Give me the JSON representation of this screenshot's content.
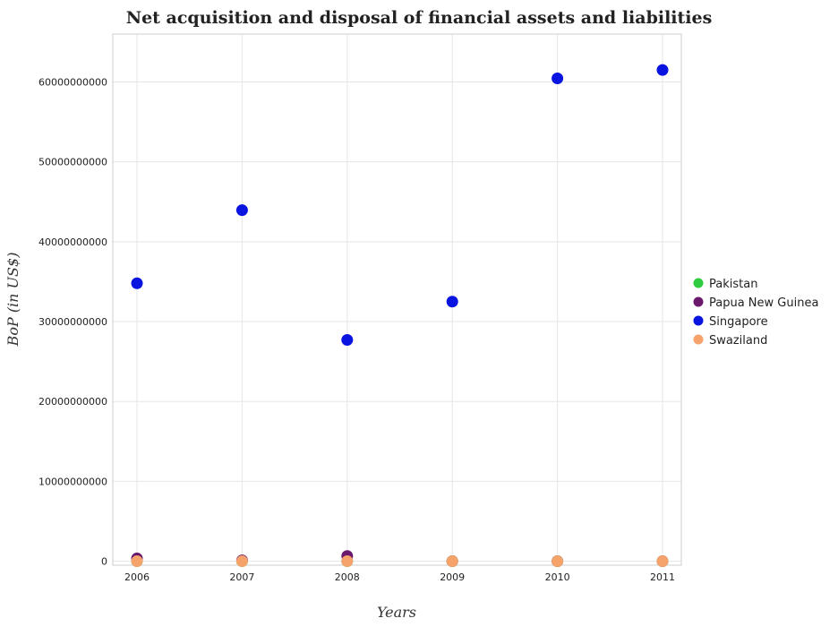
{
  "chart_data": {
    "type": "scatter",
    "title": "Net acquisition and disposal of financial assets and liabilities",
    "xlabel": "Years",
    "ylabel": "BoP (in US$)",
    "categories": [
      "2006",
      "2007",
      "2008",
      "2009",
      "2010",
      "2011"
    ],
    "y_ticks": [
      0,
      10000000000,
      20000000000,
      30000000000,
      40000000000,
      50000000000,
      60000000000
    ],
    "y_tick_labels": [
      "0",
      "10000000000",
      "20000000000",
      "30000000000",
      "40000000000",
      "50000000000",
      "60000000000"
    ],
    "ylim": [
      -500000000,
      66000000000
    ],
    "grid": true,
    "legend_position": "right",
    "series": [
      {
        "name": "Pakistan",
        "color": "#2ecc40",
        "values": [
          0,
          0,
          0,
          0,
          0,
          0
        ]
      },
      {
        "name": "Papua New Guinea",
        "color": "#6b1a6b",
        "values": [
          350000000,
          100000000,
          650000000,
          0,
          0,
          0
        ]
      },
      {
        "name": "Singapore",
        "color": "#0a14e0",
        "values": [
          34800000000,
          43950000000,
          27700000000,
          32500000000,
          60450000000,
          61500000000
        ]
      },
      {
        "name": "Swaziland",
        "color": "#f5a26b",
        "values": [
          0,
          0,
          0,
          0,
          0,
          0
        ]
      }
    ]
  }
}
